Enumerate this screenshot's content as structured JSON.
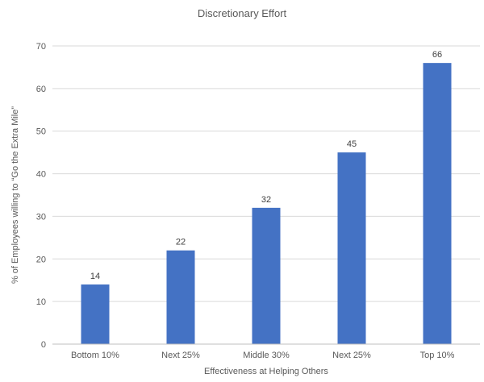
{
  "chart_data": {
    "type": "bar",
    "title": "Discretionary Effort",
    "xlabel": "Effectiveness at Helping Others",
    "ylabel": "% of Employees willing to “Go the Extra Mile”",
    "categories": [
      "Bottom 10%",
      "Next 25%",
      "Middle 30%",
      "Next 25%",
      "Top 10%"
    ],
    "values": [
      14,
      22,
      32,
      45,
      66
    ],
    "data_labels": [
      "14",
      "22",
      "32",
      "45",
      "66"
    ],
    "yticks": [
      0,
      10,
      20,
      30,
      40,
      50,
      60,
      70
    ],
    "ylim": [
      0,
      70
    ],
    "grid": "on",
    "legend": "none",
    "colors": {
      "bar": "#4472C4",
      "title": "#595959",
      "axis_title": "#595959",
      "tick": "#595959",
      "data_label": "#404040",
      "gridline": "#D9D9D9",
      "axis_line": "#BFBFBF",
      "background": "#FFFFFF"
    }
  }
}
